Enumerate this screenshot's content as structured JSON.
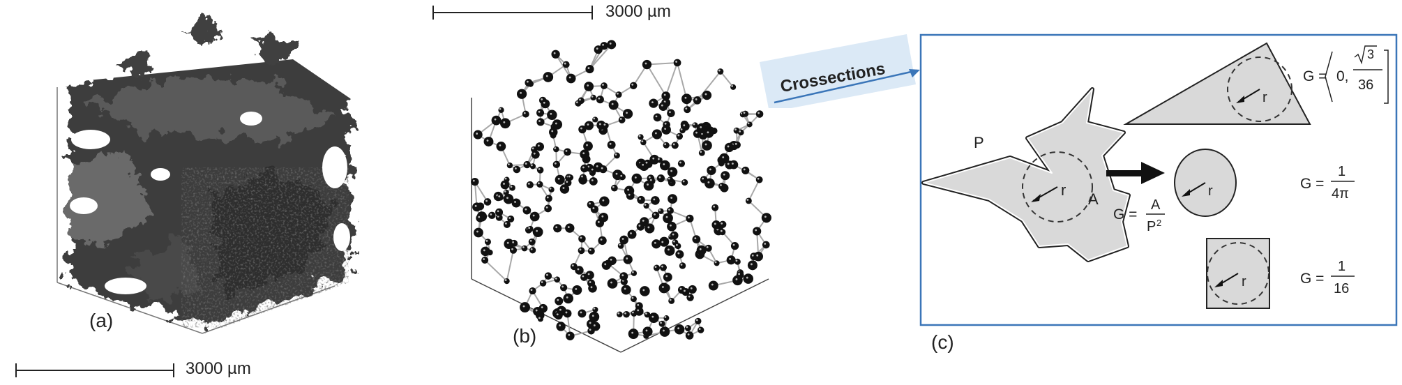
{
  "colors": {
    "panel_c_border": "#3a75b8",
    "callout_fill": "#dbe9f6",
    "shape_fill": "#d9d9d9",
    "arrow_blue": "#3a75b8",
    "dark_texture": "#3b3b3b"
  },
  "panels": {
    "a": {
      "label": "(a)",
      "scale_label": "3000 µm",
      "image_kind": "3d-pore-volume-render"
    },
    "b": {
      "label": "(b)",
      "scale_label": "3000 µm",
      "image_kind": "pore-network-model"
    },
    "c": {
      "label": "(c)"
    }
  },
  "callout": {
    "text": "Crossections"
  },
  "shape_factor": {
    "irregular": {
      "perimeter_label": "P",
      "area_label": "A",
      "radius_label": "r",
      "formula_lhs": "G =",
      "formula_num": "A",
      "formula_den": "P",
      "formula_den_exp": "2"
    },
    "triangle": {
      "radius_label": "r",
      "formula_lhs": "G =",
      "formula_lower": "0,",
      "formula_num_root": "3",
      "formula_den": "36"
    },
    "circle": {
      "radius_label": "r",
      "formula_lhs": "G =",
      "formula_num": "1",
      "formula_den": "4π"
    },
    "square": {
      "radius_label": "r",
      "formula_lhs": "G =",
      "formula_num": "1",
      "formula_den": "16"
    }
  }
}
